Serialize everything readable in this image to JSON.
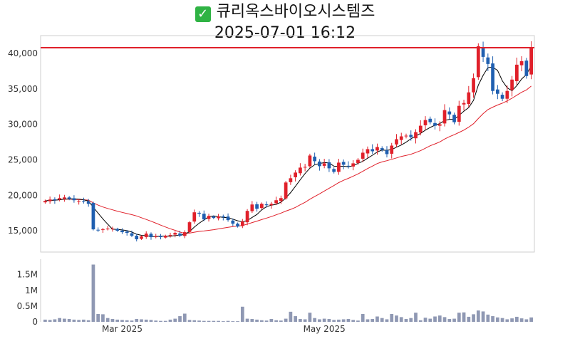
{
  "title": {
    "name": "큐리옥스바이오시스템즈",
    "datetime": "2025-07-01 16:12",
    "icon": "check-mark-icon"
  },
  "colors": {
    "up": "#e0202a",
    "down": "#1f5fb0",
    "ma_short": "#000000",
    "ma_long": "#e0202a",
    "hline": "#e0202a",
    "volume": "#8f98b3"
  },
  "chart_data": [
    {
      "type": "candlestick",
      "title": "",
      "ylim": [
        12000,
        42500
      ],
      "yticks": [
        15000,
        20000,
        25000,
        30000,
        35000,
        40000
      ],
      "ytick_labels": [
        "15,000",
        "20,000",
        "25,000",
        "30,000",
        "35,000",
        "40,000"
      ],
      "xtick_labels": [
        {
          "label": "Mar 2025",
          "index": 16
        },
        {
          "label": "May 2025",
          "index": 58
        }
      ],
      "hline": 40800,
      "closes": [
        19200,
        19400,
        19300,
        19600,
        19700,
        19500,
        19300,
        19200,
        19100,
        18800,
        15200,
        15100,
        15200,
        15300,
        15300,
        15000,
        14800,
        14700,
        14300,
        13800,
        14200,
        14600,
        14100,
        14200,
        14100,
        14300,
        14400,
        14700,
        14300,
        14800,
        16200,
        17600,
        17400,
        16600,
        17100,
        16800,
        17000,
        16900,
        16500,
        16000,
        15600,
        16300,
        17800,
        18700,
        18100,
        18800,
        18600,
        18800,
        19300,
        19600,
        21800,
        22400,
        23200,
        23900,
        24000,
        25600,
        24800,
        24100,
        24500,
        23800,
        23300,
        24600,
        24300,
        24100,
        24500,
        25000,
        26000,
        26500,
        26200,
        26800,
        26400,
        25800,
        27000,
        27900,
        28300,
        28400,
        28200,
        28900,
        29800,
        30600,
        30300,
        29800,
        30000,
        32000,
        31400,
        30300,
        32600,
        33000,
        34500,
        36500,
        41000,
        39500,
        38500,
        34700,
        34300,
        33600,
        34700,
        36300,
        38400,
        38900,
        36800,
        40800
      ],
      "volumes": [
        70000,
        60000,
        80000,
        120000,
        100000,
        90000,
        70000,
        60000,
        70000,
        50000,
        1820000,
        250000,
        240000,
        120000,
        90000,
        70000,
        60000,
        50000,
        40000,
        90000,
        80000,
        70000,
        60000,
        40000,
        30000,
        30000,
        70000,
        100000,
        180000,
        260000,
        60000,
        50000,
        40000,
        30000,
        30000,
        30000,
        30000,
        20000,
        30000,
        20000,
        20000,
        480000,
        100000,
        90000,
        70000,
        50000,
        40000,
        90000,
        50000,
        40000,
        100000,
        320000,
        180000,
        90000,
        80000,
        290000,
        120000,
        80000,
        100000,
        90000,
        60000,
        70000,
        80000,
        90000,
        60000,
        40000,
        250000,
        80000,
        90000,
        170000,
        120000,
        80000,
        250000,
        200000,
        150000,
        90000,
        120000,
        290000,
        50000,
        130000,
        100000,
        170000,
        200000,
        150000,
        90000,
        100000,
        290000,
        300000,
        160000,
        240000,
        360000,
        330000,
        230000,
        180000,
        140000,
        120000,
        80000,
        110000,
        160000,
        110000,
        80000,
        140000
      ],
      "volume_ylim": [
        0,
        1900000
      ],
      "volume_yticks": [
        0,
        500000,
        1000000,
        1500000
      ],
      "volume_ytick_labels": [
        "0",
        "0.5M",
        "1M",
        "1.5M"
      ],
      "series": [
        {
          "kind": "candlestick"
        },
        {
          "kind": "line",
          "window": 5
        },
        {
          "kind": "line",
          "window": 20
        },
        {
          "kind": "bar"
        }
      ]
    }
  ]
}
